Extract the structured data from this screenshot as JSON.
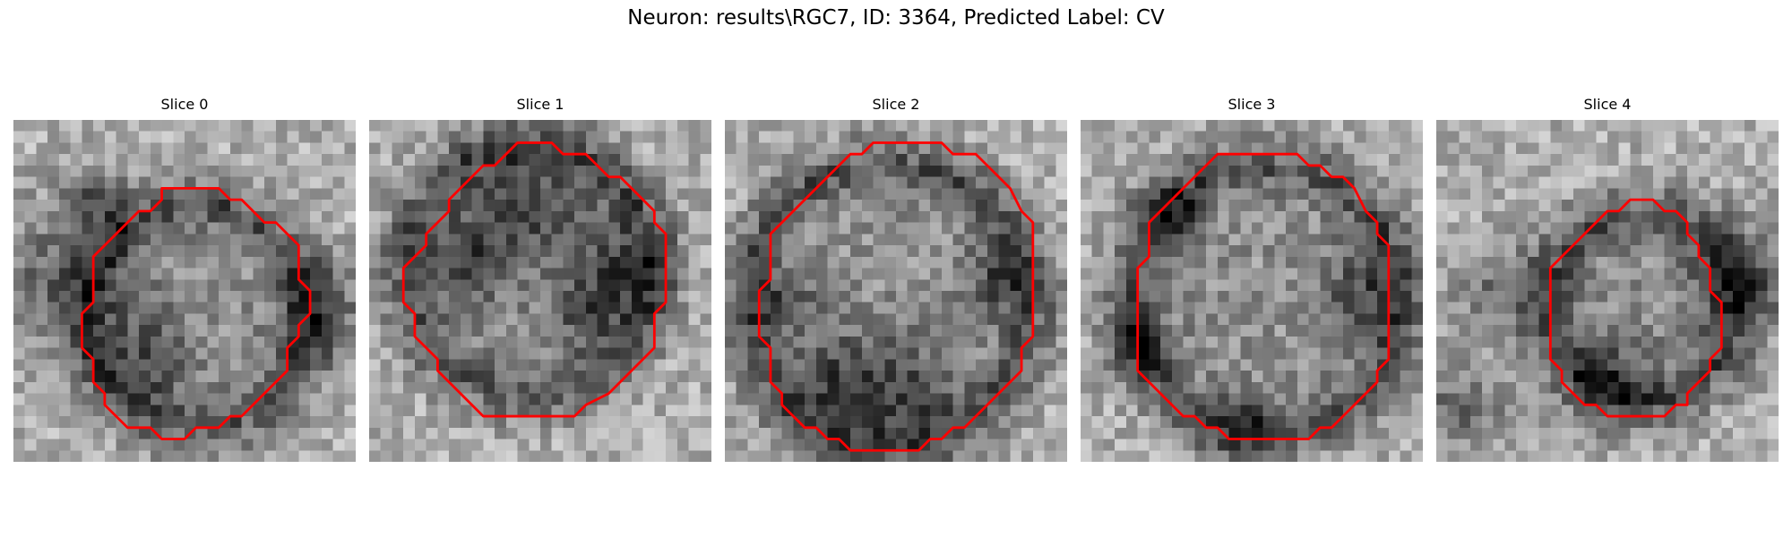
{
  "figure": {
    "title": "Neuron: results\\RGC7, ID: 3364, Predicted Label: CV"
  },
  "contour_color": "#ff0000",
  "panels": [
    {
      "title": "Slice 0",
      "seed": 11,
      "dark_spots": [
        [
          4,
          14,
          6
        ],
        [
          27,
          17,
          4
        ],
        [
          12,
          21,
          4
        ],
        [
          7,
          7,
          3
        ]
      ],
      "contour": [
        [
          13,
          6
        ],
        [
          18,
          6
        ],
        [
          19,
          7
        ],
        [
          20,
          7
        ],
        [
          21,
          8
        ],
        [
          22,
          9
        ],
        [
          23,
          9
        ],
        [
          24,
          10
        ],
        [
          25,
          11
        ],
        [
          25,
          14
        ],
        [
          26,
          15
        ],
        [
          26,
          17
        ],
        [
          25,
          18
        ],
        [
          25,
          19
        ],
        [
          24,
          20
        ],
        [
          24,
          22
        ],
        [
          23,
          23
        ],
        [
          22,
          24
        ],
        [
          21,
          25
        ],
        [
          20,
          26
        ],
        [
          19,
          26
        ],
        [
          18,
          27
        ],
        [
          16,
          27
        ],
        [
          15,
          28
        ],
        [
          13,
          28
        ],
        [
          12,
          27
        ],
        [
          10,
          27
        ],
        [
          9,
          26
        ],
        [
          8,
          25
        ],
        [
          8,
          24
        ],
        [
          7,
          23
        ],
        [
          7,
          21
        ],
        [
          6,
          20
        ],
        [
          6,
          17
        ],
        [
          7,
          16
        ],
        [
          7,
          12
        ],
        [
          8,
          11
        ],
        [
          9,
          10
        ],
        [
          10,
          9
        ],
        [
          11,
          8
        ],
        [
          12,
          8
        ],
        [
          13,
          7
        ]
      ]
    },
    {
      "title": "Slice 1",
      "seed": 23,
      "dark_spots": [
        [
          14,
          7,
          5
        ],
        [
          22,
          13,
          4
        ],
        [
          9,
          12,
          4
        ],
        [
          19,
          17,
          3
        ]
      ],
      "contour": [
        [
          13,
          2
        ],
        [
          16,
          2
        ],
        [
          17,
          3
        ],
        [
          19,
          3
        ],
        [
          20,
          4
        ],
        [
          21,
          5
        ],
        [
          22,
          5
        ],
        [
          23,
          6
        ],
        [
          24,
          7
        ],
        [
          25,
          8
        ],
        [
          25,
          9
        ],
        [
          26,
          10
        ],
        [
          26,
          16
        ],
        [
          25,
          17
        ],
        [
          25,
          20
        ],
        [
          24,
          21
        ],
        [
          23,
          22
        ],
        [
          22,
          23
        ],
        [
          21,
          24
        ],
        [
          19,
          25
        ],
        [
          18,
          26
        ],
        [
          10,
          26
        ],
        [
          9,
          25
        ],
        [
          8,
          24
        ],
        [
          7,
          23
        ],
        [
          6,
          22
        ],
        [
          6,
          21
        ],
        [
          5,
          20
        ],
        [
          4,
          19
        ],
        [
          4,
          17
        ],
        [
          3,
          16
        ],
        [
          3,
          13
        ],
        [
          4,
          12
        ],
        [
          5,
          11
        ],
        [
          5,
          10
        ],
        [
          6,
          9
        ],
        [
          7,
          8
        ],
        [
          7,
          7
        ],
        [
          8,
          6
        ],
        [
          9,
          5
        ],
        [
          10,
          4
        ],
        [
          11,
          4
        ],
        [
          12,
          3
        ]
      ]
    },
    {
      "title": "Slice 2",
      "seed": 37,
      "dark_spots": [
        [
          10,
          23,
          4
        ],
        [
          16,
          24,
          5
        ],
        [
          5,
          16,
          3
        ],
        [
          24,
          14,
          3
        ]
      ],
      "contour": [
        [
          13,
          2
        ],
        [
          19,
          2
        ],
        [
          20,
          3
        ],
        [
          22,
          3
        ],
        [
          23,
          4
        ],
        [
          24,
          5
        ],
        [
          25,
          6
        ],
        [
          26,
          8
        ],
        [
          27,
          9
        ],
        [
          27,
          19
        ],
        [
          26,
          20
        ],
        [
          26,
          22
        ],
        [
          25,
          23
        ],
        [
          24,
          24
        ],
        [
          23,
          25
        ],
        [
          22,
          26
        ],
        [
          21,
          27
        ],
        [
          20,
          27
        ],
        [
          19,
          28
        ],
        [
          18,
          28
        ],
        [
          17,
          29
        ],
        [
          11,
          29
        ],
        [
          10,
          28
        ],
        [
          9,
          28
        ],
        [
          8,
          27
        ],
        [
          7,
          27
        ],
        [
          6,
          26
        ],
        [
          5,
          25
        ],
        [
          5,
          24
        ],
        [
          4,
          23
        ],
        [
          4,
          20
        ],
        [
          3,
          19
        ],
        [
          3,
          15
        ],
        [
          4,
          14
        ],
        [
          4,
          10
        ],
        [
          5,
          9
        ],
        [
          6,
          8
        ],
        [
          7,
          7
        ],
        [
          8,
          6
        ],
        [
          9,
          5
        ],
        [
          10,
          4
        ],
        [
          11,
          3
        ],
        [
          12,
          3
        ]
      ]
    },
    {
      "title": "Slice 3",
      "seed": 53,
      "dark_spots": [
        [
          25,
          15,
          4
        ],
        [
          8,
          8,
          3
        ],
        [
          14,
          27,
          3
        ],
        [
          5,
          20,
          3
        ]
      ],
      "contour": [
        [
          12,
          3
        ],
        [
          19,
          3
        ],
        [
          20,
          4
        ],
        [
          21,
          4
        ],
        [
          22,
          5
        ],
        [
          23,
          5
        ],
        [
          24,
          6
        ],
        [
          25,
          8
        ],
        [
          26,
          9
        ],
        [
          26,
          10
        ],
        [
          27,
          11
        ],
        [
          27,
          21
        ],
        [
          26,
          22
        ],
        [
          26,
          23
        ],
        [
          25,
          24
        ],
        [
          24,
          25
        ],
        [
          23,
          26
        ],
        [
          22,
          27
        ],
        [
          21,
          27
        ],
        [
          20,
          28
        ],
        [
          13,
          28
        ],
        [
          12,
          27
        ],
        [
          11,
          27
        ],
        [
          10,
          26
        ],
        [
          9,
          26
        ],
        [
          8,
          25
        ],
        [
          7,
          24
        ],
        [
          6,
          23
        ],
        [
          5,
          22
        ],
        [
          5,
          13
        ],
        [
          6,
          12
        ],
        [
          6,
          9
        ],
        [
          7,
          8
        ],
        [
          8,
          7
        ],
        [
          9,
          6
        ],
        [
          10,
          5
        ],
        [
          11,
          4
        ]
      ]
    },
    {
      "title": "Slice 4",
      "seed": 71,
      "dark_spots": [
        [
          27,
          14,
          5
        ],
        [
          2,
          25,
          4
        ],
        [
          6,
          15,
          4
        ],
        [
          15,
          23,
          4
        ]
      ],
      "contour": [
        [
          17,
          7
        ],
        [
          19,
          7
        ],
        [
          20,
          8
        ],
        [
          21,
          8
        ],
        [
          22,
          9
        ],
        [
          22,
          10
        ],
        [
          23,
          11
        ],
        [
          23,
          12
        ],
        [
          24,
          13
        ],
        [
          24,
          15
        ],
        [
          25,
          16
        ],
        [
          25,
          20
        ],
        [
          24,
          21
        ],
        [
          24,
          22
        ],
        [
          23,
          23
        ],
        [
          22,
          24
        ],
        [
          22,
          25
        ],
        [
          21,
          25
        ],
        [
          20,
          26
        ],
        [
          15,
          26
        ],
        [
          14,
          25
        ],
        [
          13,
          25
        ],
        [
          12,
          24
        ],
        [
          11,
          23
        ],
        [
          11,
          22
        ],
        [
          10,
          21
        ],
        [
          10,
          13
        ],
        [
          11,
          12
        ],
        [
          12,
          11
        ],
        [
          13,
          10
        ],
        [
          14,
          9
        ],
        [
          15,
          8
        ],
        [
          16,
          8
        ]
      ]
    }
  ]
}
